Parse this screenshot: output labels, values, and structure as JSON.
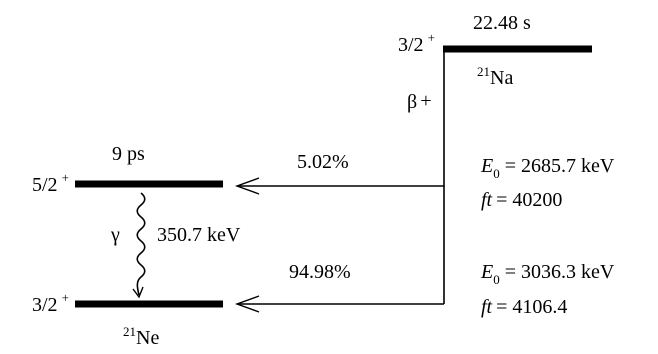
{
  "parent": {
    "spin": "3/2",
    "parity": "+",
    "half_life": "22.48 s",
    "mass_number": "21",
    "element": "Na",
    "decay_mode": "β",
    "decay_sign": "+"
  },
  "excited_state": {
    "spin": "5/2",
    "parity": "+",
    "half_life": "9 ps"
  },
  "ground_state": {
    "spin": "3/2",
    "parity": "+",
    "mass_number": "21",
    "element": "Ne"
  },
  "gamma": {
    "symbol": "γ",
    "energy": "350.7 keV"
  },
  "branches": [
    {
      "intensity": "5.02%",
      "e0_symbol": "E",
      "e0_subscript": "0",
      "e0_value": "= 2685.7 keV",
      "ft_symbol": "ft",
      "ft_value": "= 40200"
    },
    {
      "intensity": "94.98%",
      "e0_symbol": "E",
      "e0_subscript": "0",
      "e0_value": "= 3036.3 keV",
      "ft_symbol": "ft",
      "ft_value": "= 4106.4"
    }
  ]
}
